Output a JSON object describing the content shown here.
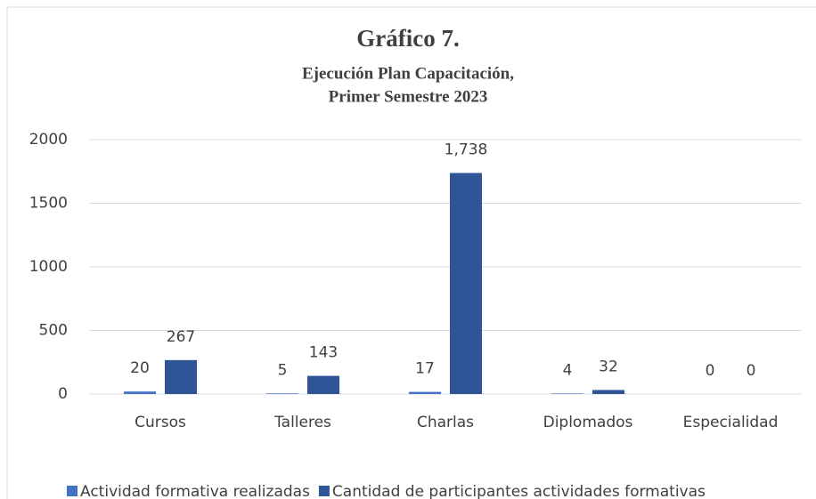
{
  "chart_data": {
    "type": "bar",
    "title": "Gráfico 7.",
    "subtitle": [
      "Ejecución Plan Capacitación,",
      "Primer Semestre 2023"
    ],
    "categories": [
      "Cursos",
      "Talleres",
      "Charlas",
      "Diplomados",
      "Especialidad"
    ],
    "series": [
      {
        "name": "Actividad formativa realizadas",
        "color": "#4472c4",
        "values": [
          20,
          5,
          17,
          4,
          0
        ]
      },
      {
        "name": "Cantidad de participantes actividades formativas",
        "color": "#2f5597",
        "values": [
          267,
          143,
          1738,
          32,
          0
        ],
        "value_labels": [
          "267",
          "143",
          "1,738",
          "32",
          "0"
        ]
      }
    ],
    "ylim": [
      0,
      2000
    ],
    "yticks": [
      0,
      500,
      1000,
      1500,
      2000
    ],
    "grid": true,
    "legend": "bottom"
  }
}
